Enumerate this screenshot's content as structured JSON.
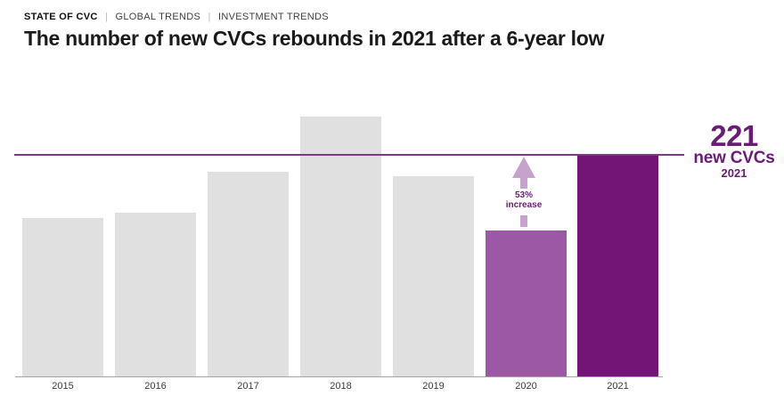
{
  "header": {
    "breadcrumb": {
      "items": [
        "STATE OF CVC",
        "GLOBAL TRENDS",
        "INVESTMENT TRENDS"
      ],
      "separator": "|"
    },
    "title": "The number of new CVCs rebounds in 2021 after a 6-year low"
  },
  "colors": {
    "bar_default": "#e0e0e0",
    "bar_2020": "#9c58a4",
    "bar_2021": "#731577",
    "threshold": "#7b3a86",
    "arrow": "#c7a2cc",
    "accent_text": "#6a1c77"
  },
  "chart_data": {
    "type": "bar",
    "title": "The number of new CVCs rebounds in 2021 after a 6-year low",
    "categories": [
      "2015",
      "2016",
      "2017",
      "2018",
      "2019",
      "2020",
      "2021"
    ],
    "values": [
      158,
      163,
      204,
      259,
      199,
      145,
      221
    ],
    "xlabel": "",
    "ylabel": "",
    "ylim": [
      0,
      260
    ],
    "grid": false,
    "legend": "none",
    "bar_colors": [
      "#e0e0e0",
      "#e0e0e0",
      "#e0e0e0",
      "#e0e0e0",
      "#e0e0e0",
      "#9c58a4",
      "#731577"
    ],
    "annotations": {
      "threshold": {
        "value": 221,
        "color": "#7b3a86"
      },
      "increase": {
        "line1": "53%",
        "line2": "increase",
        "applies_to": "2020"
      },
      "callout": {
        "value": "221",
        "label": "new CVCs",
        "year": "2021"
      }
    }
  }
}
